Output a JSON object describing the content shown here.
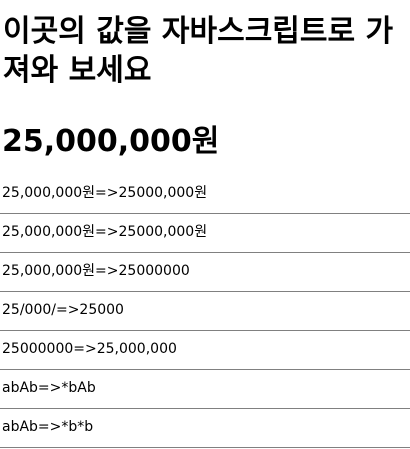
{
  "heading": "이곳의 값을 자바스크립트로 가져와 보세요",
  "price": "25,000,000원",
  "results": [
    "25,000,000원=>25000,000원",
    "25,000,000원=>25000,000원",
    "25,000,000원=>25000000",
    "25/000/=>25000",
    "25000000=>25,000,000",
    "abAb=>*bAb",
    "abAb=>*b*b"
  ]
}
